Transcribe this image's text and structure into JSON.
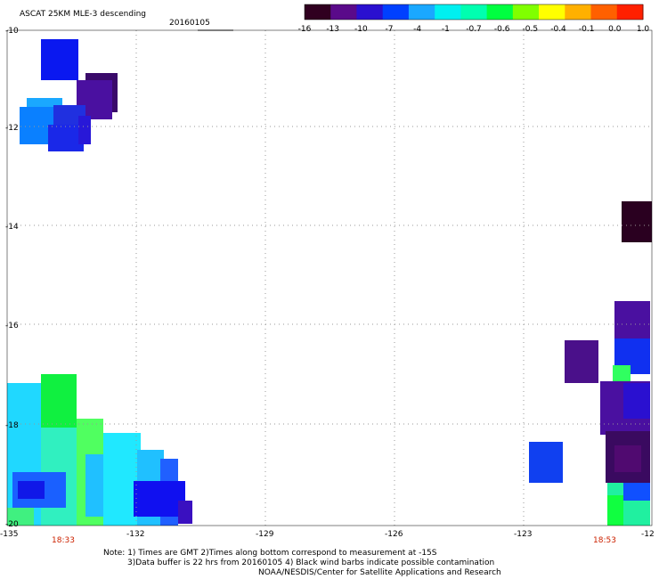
{
  "title": "ASCAT 25KM MLE-3 descending",
  "date": "20160105",
  "colorbar": {
    "labels": [
      "-16",
      "-13",
      "-10",
      "-7",
      "-4",
      "-1",
      "-0.7",
      "-0.6",
      "-0.5",
      "-0.4",
      "-0.1",
      "0.0",
      "1.0"
    ],
    "colors": [
      "#300020",
      "#5a0a8a",
      "#2a10d0",
      "#0040ff",
      "#1aa8ff",
      "#00f0f0",
      "#00ffb0",
      "#00ff40",
      "#80ff00",
      "#ffff00",
      "#ffb000",
      "#ff6000",
      "#ff2000"
    ]
  },
  "axes": {
    "x_ticks": [
      "-135",
      "-132",
      "-129",
      "-126",
      "-123",
      "-12"
    ],
    "y_ticks": [
      "-10",
      "-12",
      "-14",
      "-16",
      "-18",
      "-20"
    ],
    "times": [
      "18:33",
      "18:53"
    ]
  },
  "notes": {
    "line1": "Note: 1) Times are GMT 2)Times along bottom correspond to measurement at -15S",
    "line2": "3)Data buffer is 22 hrs from 20160105 4) Black wind barbs indicate possible contamination",
    "line3": "NOAA/NESDIS/Center for Satellite Applications and Research"
  }
}
